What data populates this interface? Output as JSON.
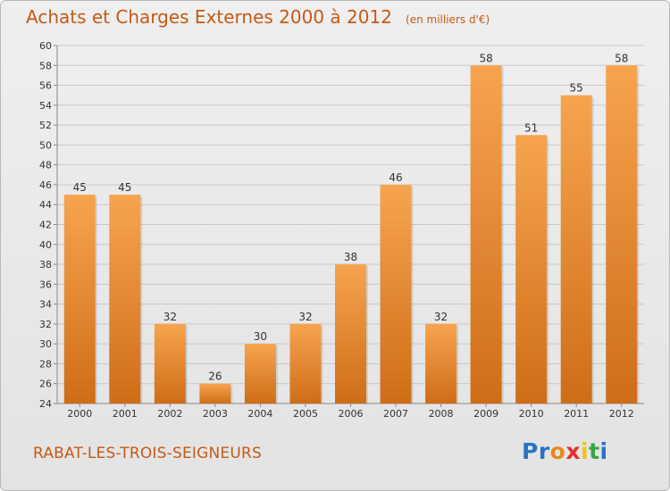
{
  "header": {
    "title": "Achats et Charges Externes 2000 à 2012",
    "subtitle": "(en milliers d'€)"
  },
  "footer": {
    "town": "RABAT-LES-TROIS-SEIGNEURS",
    "logo_letters": [
      {
        "char": "P",
        "color": "#2a73c4"
      },
      {
        "char": "r",
        "color": "#2a73c4"
      },
      {
        "char": "o",
        "color": "#e58a1b"
      },
      {
        "char": "x",
        "color": "#e4312b"
      },
      {
        "char": "i",
        "color": "#f2c418"
      },
      {
        "char": "t",
        "color": "#3aa34a"
      },
      {
        "char": "i",
        "color": "#2a73c4"
      }
    ]
  },
  "colors": {
    "bar_light": "#f7a44f",
    "bar_dark": "#cf6d17",
    "text": "#333333",
    "accent": "#c45a16"
  },
  "chart_data": {
    "type": "bar",
    "title": "Achats et Charges Externes 2000 à 2012",
    "subtitle": "(en milliers d'€)",
    "xlabel": "",
    "ylabel": "",
    "ylim": [
      24,
      60
    ],
    "yticks": [
      24,
      26,
      28,
      30,
      32,
      34,
      36,
      38,
      40,
      42,
      44,
      46,
      48,
      50,
      52,
      54,
      56,
      58,
      60
    ],
    "grid": true,
    "categories": [
      "2000",
      "2001",
      "2002",
      "2003",
      "2004",
      "2005",
      "2006",
      "2007",
      "2008",
      "2009",
      "2010",
      "2011",
      "2012"
    ],
    "values": [
      45,
      45,
      32,
      26,
      30,
      32,
      38,
      46,
      32,
      58,
      51,
      55,
      58
    ],
    "data_labels": [
      "45",
      "45",
      "32",
      "26",
      "30",
      "32",
      "38",
      "46",
      "32",
      "58",
      "51",
      "55",
      "58"
    ]
  }
}
